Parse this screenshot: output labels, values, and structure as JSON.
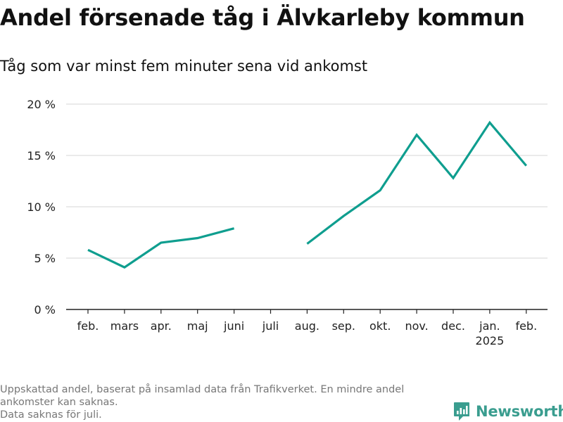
{
  "header": {
    "title": "Andel försenade tåg i Älvkarleby kommun",
    "subtitle": "Tåg som var minst fem minuter sena vid ankomst"
  },
  "footnote": {
    "lines": [
      "Uppskattad andel, baserat på insamlad data från Trafikverket. En mindre andel",
      "ankomster kan saknas.",
      "Data saknas för juli."
    ]
  },
  "brand": {
    "name": "Newsworthy",
    "color": "#3a9d8f"
  },
  "chart_data": {
    "type": "line",
    "title": "Andel försenade tåg i Älvkarleby kommun",
    "subtitle": "Tåg som var minst fem minuter sena vid ankomst",
    "categories": [
      "feb.",
      "mars",
      "apr.",
      "maj",
      "juni",
      "juli",
      "aug.",
      "sep.",
      "okt.",
      "nov.",
      "dec.",
      "jan.",
      "feb."
    ],
    "category_sublabels": [
      "",
      "",
      "",
      "",
      "",
      "",
      "",
      "",
      "",
      "",
      "",
      "2025",
      ""
    ],
    "series": [
      {
        "values": [
          5.8,
          4.1,
          6.5,
          6.95,
          7.9,
          null,
          6.4,
          9.1,
          11.6,
          17.0,
          12.8,
          18.2,
          14.0
        ],
        "color": "#0f9e8f"
      }
    ],
    "ylim": [
      0,
      20
    ],
    "yticks": [
      0,
      5,
      10,
      15,
      20
    ],
    "ytick_labels": [
      "0 %",
      "5 %",
      "10 %",
      "15 %",
      "20 %"
    ],
    "grid": true,
    "gridColor": "#dddddd",
    "axisColor": "#222222",
    "xlabel": "",
    "ylabel": "",
    "legend": "none"
  }
}
